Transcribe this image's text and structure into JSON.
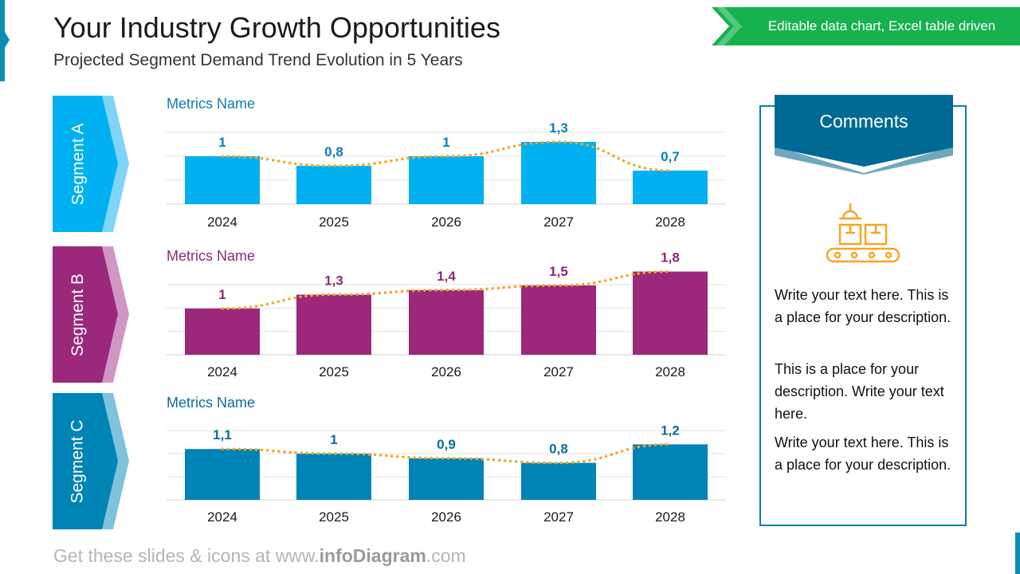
{
  "header": {
    "title": "Your Industry Growth Opportunities",
    "subtitle": "Projected Segment Demand Trend Evolution in 5 Years",
    "badge": "Editable data chart, Excel table driven"
  },
  "colors": {
    "segment_a": "#00b0f0",
    "segment_b": "#9b287b",
    "segment_c": "#0083b5",
    "trend_line": "#f5a623",
    "badge": "#17b150",
    "comments_header": "#006a94"
  },
  "comments": {
    "title": "Comments",
    "icon": "conveyor-belt-boxes-icon",
    "paragraphs": [
      "Write your text here. This is a place for your description.",
      "This is a place for your description. Write your text here.",
      "Write your text here. This is a place for your description."
    ]
  },
  "footer": {
    "prefix": "Get these slides & icons at www.",
    "brand": "infoDiagram",
    "suffix": ".com"
  },
  "chart_data": [
    {
      "type": "bar",
      "segment_label": "Segment A",
      "title": "Metrics Name",
      "categories": [
        "2024",
        "2025",
        "2026",
        "2027",
        "2028"
      ],
      "values": [
        1.0,
        0.8,
        1.0,
        1.3,
        0.7
      ],
      "labels": [
        "1",
        "0,8",
        "1",
        "1,3",
        "0,7"
      ],
      "trendline": "dotted smooth",
      "ylim": [
        0,
        1.5
      ],
      "grid": true
    },
    {
      "type": "bar",
      "segment_label": "Segment B",
      "title": "Metrics Name",
      "categories": [
        "2024",
        "2025",
        "2026",
        "2027",
        "2028"
      ],
      "values": [
        1.0,
        1.3,
        1.4,
        1.5,
        1.8
      ],
      "labels": [
        "1",
        "1,3",
        "1,4",
        "1,5",
        "1,8"
      ],
      "trendline": "dotted smooth",
      "ylim": [
        0,
        2.0
      ],
      "grid": true
    },
    {
      "type": "bar",
      "segment_label": "Segment C",
      "title": "Metrics Name",
      "categories": [
        "2024",
        "2025",
        "2026",
        "2027",
        "2028"
      ],
      "values": [
        1.1,
        1.0,
        0.9,
        0.8,
        1.2
      ],
      "labels": [
        "1,1",
        "1",
        "0,9",
        "0,8",
        "1,2"
      ],
      "trendline": "dotted smooth",
      "ylim": [
        0,
        1.5
      ],
      "grid": true
    }
  ]
}
